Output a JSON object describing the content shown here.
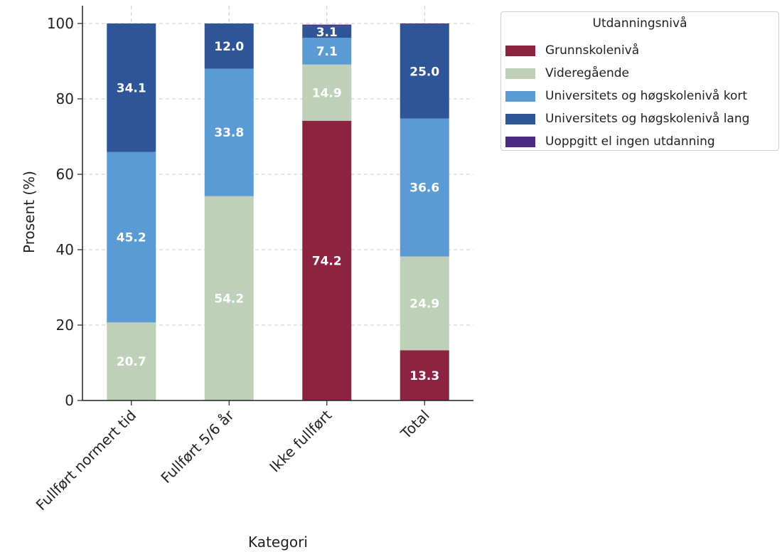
{
  "chart_data": {
    "type": "bar",
    "stacked": true,
    "xlabel": "Kategori",
    "ylabel": "Prosent (%)",
    "ylim": [
      0,
      100
    ],
    "yticks": [
      0,
      20,
      40,
      60,
      80,
      100
    ],
    "grid": true,
    "categories": [
      "Fullført normert tid",
      "Fullført 5/6 år",
      "Ikke fullført",
      "Total"
    ],
    "legend": {
      "title": "Utdanningsnivå",
      "placement": "outside-top-right"
    },
    "series": [
      {
        "name": "Grunnskolenivå",
        "color": "#8b2341",
        "values": [
          0,
          0,
          74.2,
          13.3
        ]
      },
      {
        "name": "Videregående",
        "color": "#bfd0b8",
        "values": [
          20.7,
          54.2,
          14.9,
          24.9
        ]
      },
      {
        "name": "Universitets og høgskolenivå kort",
        "color": "#5b9bd5",
        "values": [
          45.2,
          33.8,
          7.1,
          36.6
        ]
      },
      {
        "name": "Universitets og høgskolenivå lang",
        "color": "#2e5597",
        "values": [
          34.1,
          12.0,
          3.1,
          25.0
        ]
      },
      {
        "name": "Uoppgitt el ingen utdanning",
        "color": "#4a2a82",
        "values": [
          0,
          0,
          0.4,
          0.2
        ]
      }
    ],
    "data_labels": [
      [
        "",
        "20.7",
        "45.2",
        "34.1",
        ""
      ],
      [
        "",
        "54.2",
        "33.8",
        "12.0",
        ""
      ],
      [
        "74.2",
        "14.9",
        "7.1",
        "3.1",
        ""
      ],
      [
        "13.3",
        "24.9",
        "36.6",
        "25.0",
        ""
      ]
    ]
  }
}
